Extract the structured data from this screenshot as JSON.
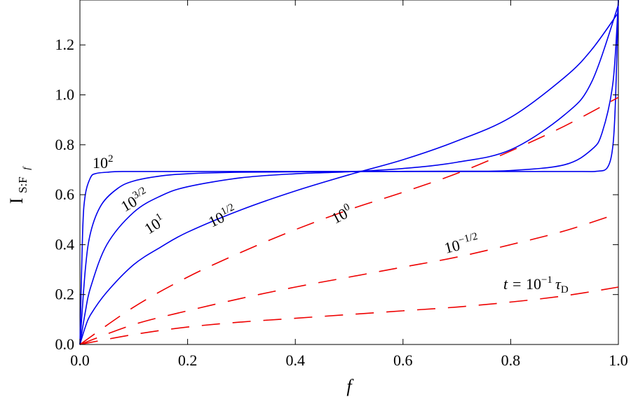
{
  "chart_data": {
    "type": "line",
    "xlabel": "f",
    "ylabel": "I",
    "ylabel_sub": "S:F",
    "ylabel_subsub": "f",
    "xlim": [
      0.0,
      1.0
    ],
    "ylim": [
      0.0,
      1.38
    ],
    "x_ticks": [
      "0.0",
      "0.2",
      "0.4",
      "0.6",
      "0.8",
      "1.0"
    ],
    "y_ticks": [
      "0.0",
      "0.2",
      "0.4",
      "0.6",
      "0.8",
      "1.0",
      "1.2"
    ],
    "grid": false,
    "colors": {
      "solid": "#0000ee",
      "dashed": "#ee0000"
    },
    "series": [
      {
        "label_base": "10",
        "label_exp": "2",
        "style": "solid",
        "x": [
          0,
          0.005,
          0.01,
          0.02,
          0.03,
          0.05,
          0.08,
          0.2,
          0.5,
          0.8,
          0.93,
          0.96,
          0.98,
          0.99,
          0.995,
          1.0
        ],
        "y": [
          0,
          0.45,
          0.6,
          0.67,
          0.685,
          0.69,
          0.693,
          0.693,
          0.693,
          0.693,
          0.693,
          0.694,
          0.71,
          0.8,
          1.0,
          1.38
        ]
      },
      {
        "label_base": "10",
        "label_exp": "3/2",
        "style": "solid",
        "x": [
          0,
          0.01,
          0.02,
          0.04,
          0.07,
          0.1,
          0.15,
          0.2,
          0.3,
          0.5,
          0.7,
          0.8,
          0.9,
          0.95,
          0.97,
          0.99,
          1.0
        ],
        "y": [
          0,
          0.3,
          0.45,
          0.56,
          0.625,
          0.655,
          0.675,
          0.684,
          0.69,
          0.693,
          0.694,
          0.697,
          0.72,
          0.78,
          0.85,
          1.05,
          1.38
        ]
      },
      {
        "label_base": "10",
        "label_exp": "1",
        "style": "solid",
        "x": [
          0,
          0.01,
          0.02,
          0.05,
          0.1,
          0.15,
          0.2,
          0.3,
          0.4,
          0.5,
          0.6,
          0.7,
          0.8,
          0.9,
          0.95,
          1.0
        ],
        "y": [
          0,
          0.13,
          0.23,
          0.4,
          0.53,
          0.595,
          0.632,
          0.668,
          0.684,
          0.692,
          0.705,
          0.73,
          0.78,
          0.92,
          1.05,
          1.36
        ]
      },
      {
        "label_base": "10",
        "label_exp": "1/2",
        "style": "solid",
        "x": [
          0,
          0.01,
          0.02,
          0.05,
          0.1,
          0.15,
          0.2,
          0.3,
          0.4,
          0.5,
          0.6,
          0.7,
          0.8,
          0.9,
          0.95,
          1.0
        ],
        "y": [
          0,
          0.07,
          0.12,
          0.21,
          0.32,
          0.39,
          0.45,
          0.54,
          0.615,
          0.68,
          0.74,
          0.815,
          0.91,
          1.07,
          1.18,
          1.33
        ]
      },
      {
        "label_base": "10",
        "label_exp": "0",
        "style": "dashed",
        "x": [
          0,
          0.1,
          0.2,
          0.3,
          0.4,
          0.5,
          0.6,
          0.7,
          0.8,
          0.9,
          1.0
        ],
        "y": [
          0,
          0.15,
          0.27,
          0.37,
          0.46,
          0.54,
          0.61,
          0.685,
          0.775,
          0.875,
          0.99
        ]
      },
      {
        "label_base": "10",
        "label_exp": "−1/2",
        "style": "dashed",
        "x": [
          0,
          0.1,
          0.2,
          0.3,
          0.4,
          0.5,
          0.6,
          0.7,
          0.8,
          0.9,
          1.0
        ],
        "y": [
          0,
          0.08,
          0.135,
          0.185,
          0.23,
          0.27,
          0.31,
          0.35,
          0.4,
          0.455,
          0.525
        ]
      },
      {
        "label_prefix": "t = ",
        "label_base": "10",
        "label_exp": "−1",
        "label_suffix": "τ",
        "label_suffix_sub": "D",
        "style": "dashed",
        "x": [
          0,
          0.1,
          0.2,
          0.3,
          0.4,
          0.5,
          0.6,
          0.7,
          0.8,
          0.9,
          1.0
        ],
        "y": [
          0,
          0.04,
          0.07,
          0.09,
          0.105,
          0.12,
          0.135,
          0.15,
          0.17,
          0.195,
          0.23
        ]
      }
    ]
  }
}
